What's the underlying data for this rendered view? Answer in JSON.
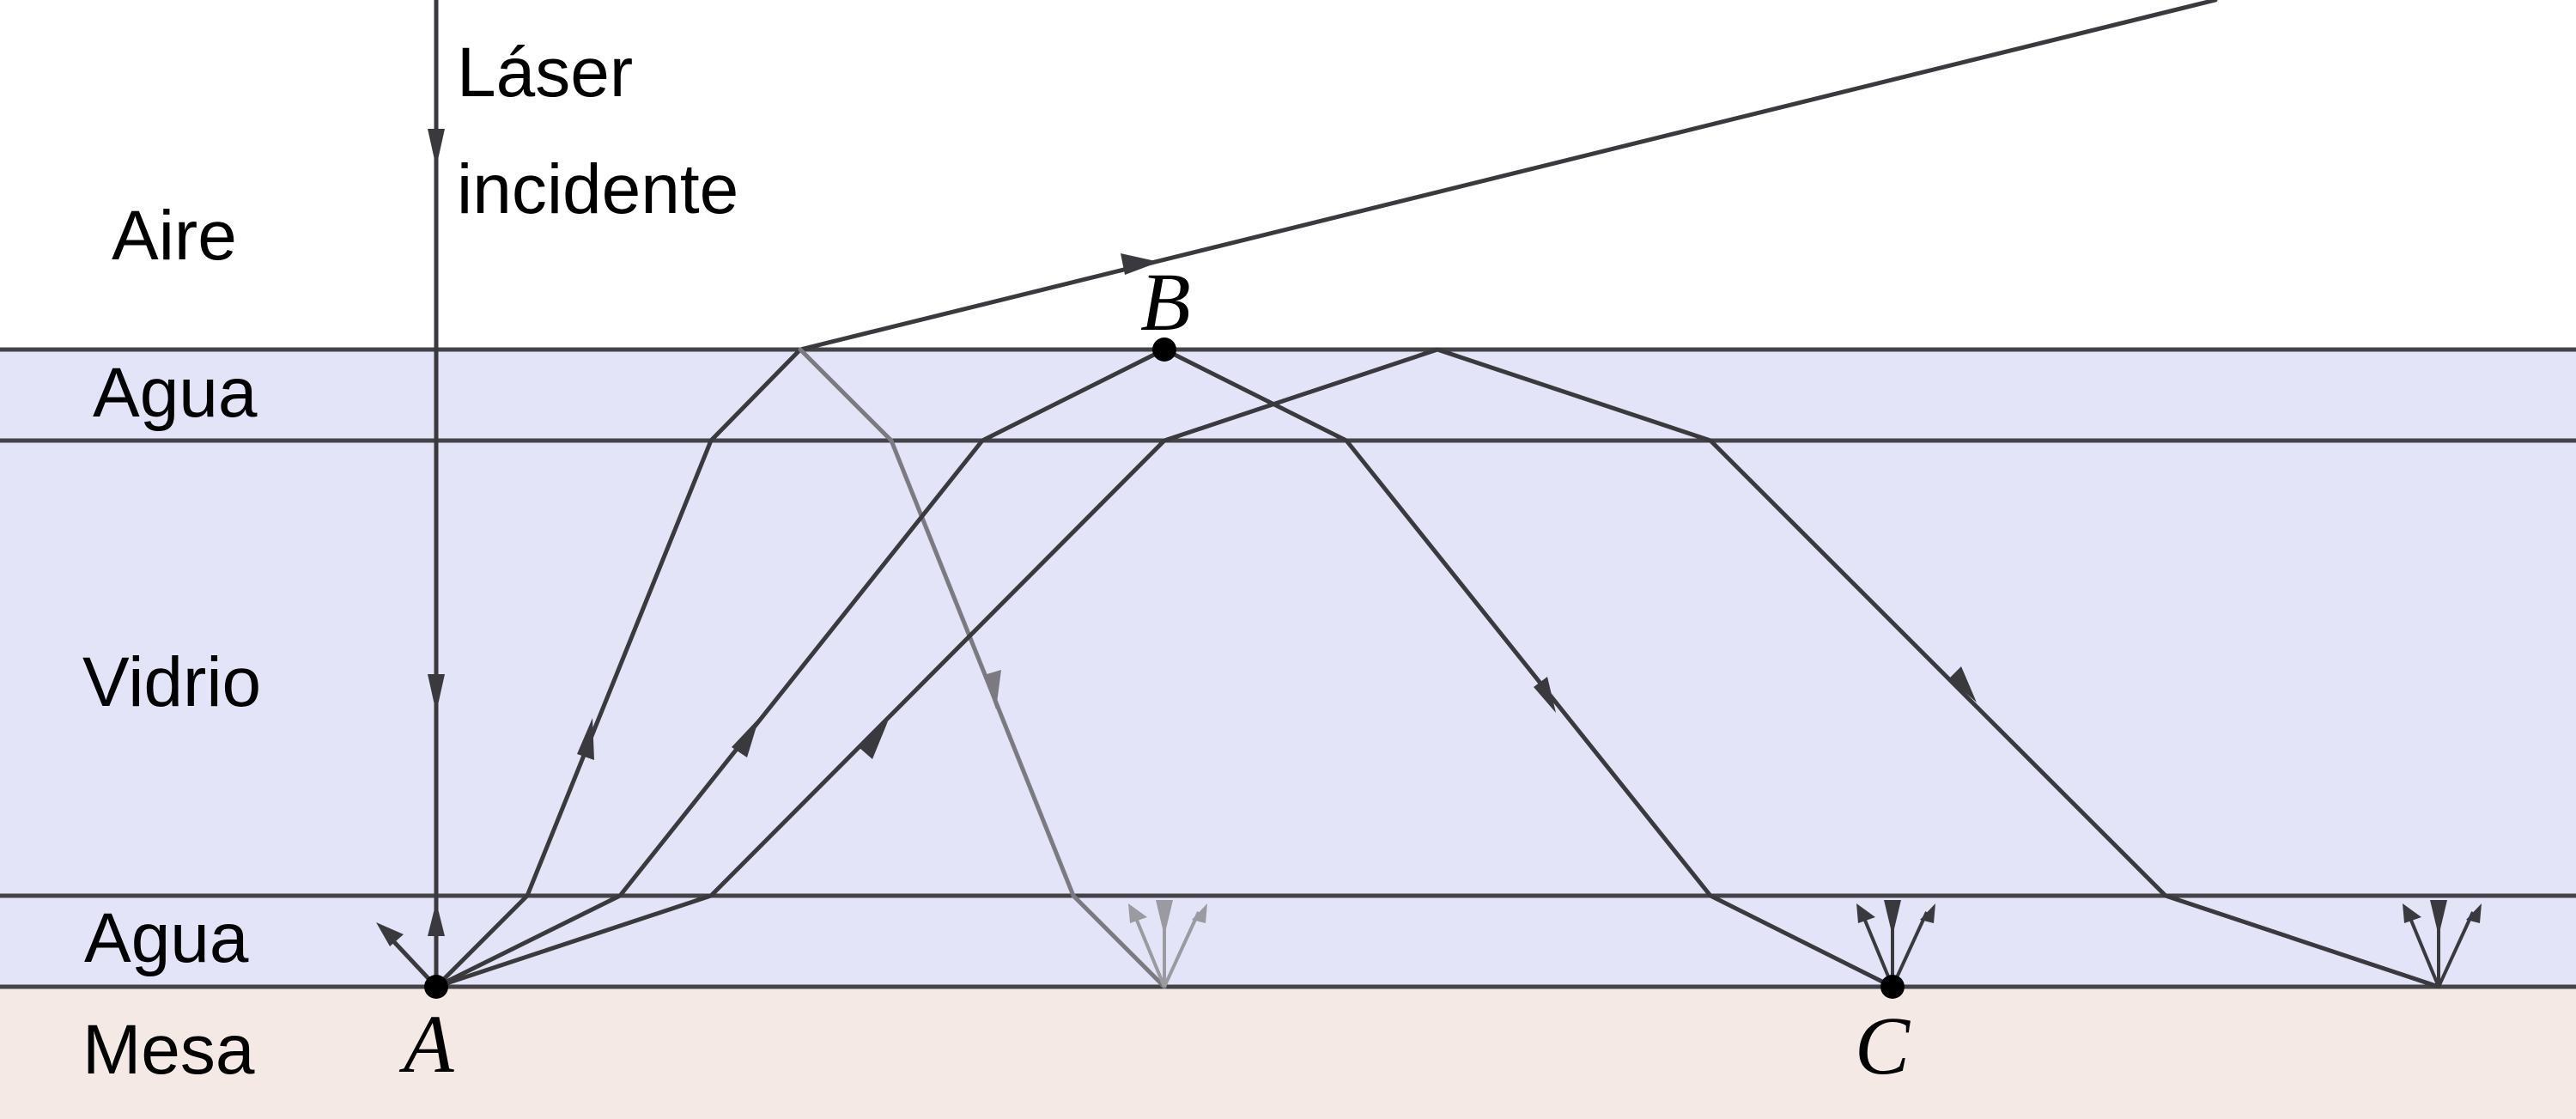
{
  "colors": {
    "air": "#ffffff",
    "water": "#e3e4f8",
    "glass": "#e3e4f8",
    "table": "#f4e9e5",
    "ray_dark": "#3a3a3e",
    "ray_light": "#7a7a80"
  },
  "layers": {
    "air": "Aire",
    "water_top": "Agua",
    "glass": "Vidrio",
    "water_bottom": "Agua",
    "table": "Mesa"
  },
  "laser": {
    "line1": "Láser",
    "line2": "incidente"
  },
  "points": {
    "a": "A",
    "b": "B",
    "c": "C"
  }
}
